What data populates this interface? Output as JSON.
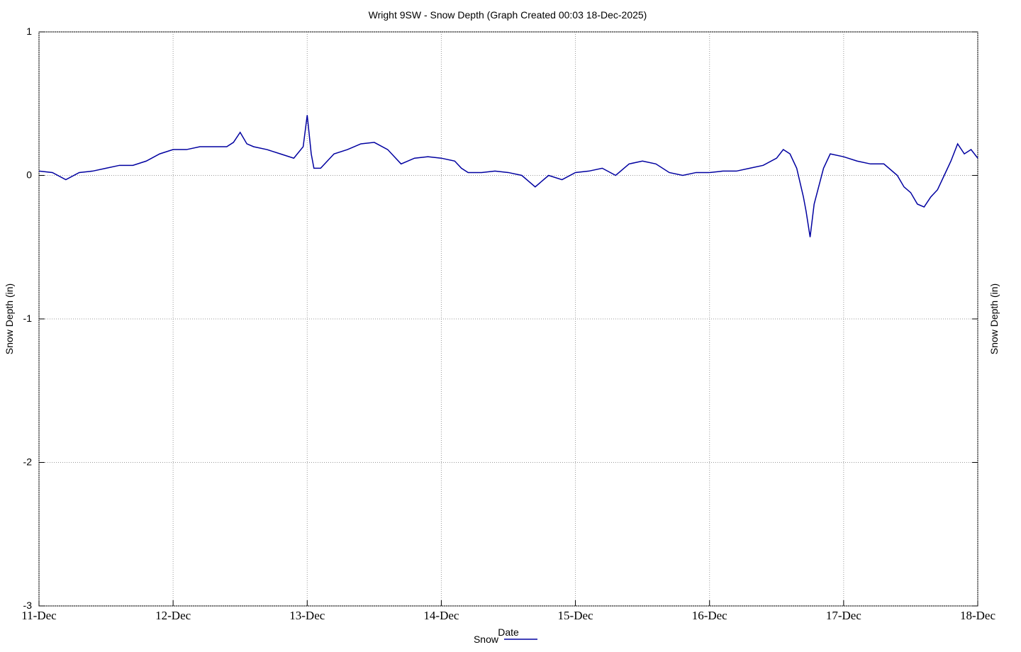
{
  "chart_data": {
    "type": "line",
    "title": "Wright 9SW - Snow Depth (Graph Created 00:03 18-Dec-2025)",
    "x_label": "Date",
    "y_label": "Snow Depth (in)",
    "legend": "bottom",
    "grid": true,
    "xlim": [
      11,
      18
    ],
    "ylim": [
      -3,
      1
    ],
    "xticks": [
      {
        "value": 11,
        "label": "11-Dec"
      },
      {
        "value": 12,
        "label": "12-Dec"
      },
      {
        "value": 13,
        "label": "13-Dec"
      },
      {
        "value": 14,
        "label": "14-Dec"
      },
      {
        "value": 15,
        "label": "15-Dec"
      },
      {
        "value": 16,
        "label": "16-Dec"
      },
      {
        "value": 17,
        "label": "17-Dec"
      },
      {
        "value": 18,
        "label": "18-Dec"
      }
    ],
    "yticks": [
      -3,
      -2,
      -1,
      0,
      1
    ],
    "x": [
      11.0,
      11.1,
      11.2,
      11.3,
      11.4,
      11.5,
      11.6,
      11.7,
      11.8,
      11.9,
      12.0,
      12.1,
      12.2,
      12.3,
      12.4,
      12.45,
      12.5,
      12.55,
      12.6,
      12.7,
      12.8,
      12.9,
      12.97,
      13.0,
      13.03,
      13.05,
      13.1,
      13.2,
      13.3,
      13.4,
      13.5,
      13.6,
      13.7,
      13.8,
      13.9,
      14.0,
      14.1,
      14.15,
      14.2,
      14.3,
      14.4,
      14.5,
      14.6,
      14.7,
      14.8,
      14.9,
      15.0,
      15.1,
      15.2,
      15.3,
      15.4,
      15.5,
      15.6,
      15.7,
      15.8,
      15.9,
      16.0,
      16.1,
      16.2,
      16.3,
      16.4,
      16.5,
      16.55,
      16.6,
      16.65,
      16.7,
      16.72,
      16.75,
      16.78,
      16.85,
      16.9,
      17.0,
      17.1,
      17.2,
      17.3,
      17.4,
      17.45,
      17.5,
      17.55,
      17.6,
      17.65,
      17.7,
      17.75,
      17.8,
      17.85,
      17.9,
      17.95,
      18.0
    ],
    "series": [
      {
        "name": "Snow",
        "color": "#0000a0",
        "values": [
          0.03,
          0.02,
          -0.03,
          0.02,
          0.03,
          0.05,
          0.07,
          0.07,
          0.1,
          0.15,
          0.18,
          0.18,
          0.2,
          0.2,
          0.2,
          0.23,
          0.3,
          0.22,
          0.2,
          0.18,
          0.15,
          0.12,
          0.2,
          0.42,
          0.15,
          0.05,
          0.05,
          0.15,
          0.18,
          0.22,
          0.23,
          0.18,
          0.08,
          0.12,
          0.13,
          0.12,
          0.1,
          0.05,
          0.02,
          0.02,
          0.03,
          0.02,
          0.0,
          -0.08,
          0.0,
          -0.03,
          0.02,
          0.03,
          0.05,
          0.0,
          0.08,
          0.1,
          0.08,
          0.02,
          0.0,
          0.02,
          0.02,
          0.03,
          0.03,
          0.05,
          0.07,
          0.12,
          0.18,
          0.15,
          0.05,
          -0.15,
          -0.25,
          -0.43,
          -0.2,
          0.05,
          0.15,
          0.13,
          0.1,
          0.08,
          0.08,
          0.0,
          -0.08,
          -0.12,
          -0.2,
          -0.22,
          -0.15,
          -0.1,
          0.0,
          0.1,
          0.22,
          0.15,
          0.18,
          0.12
        ]
      }
    ]
  }
}
